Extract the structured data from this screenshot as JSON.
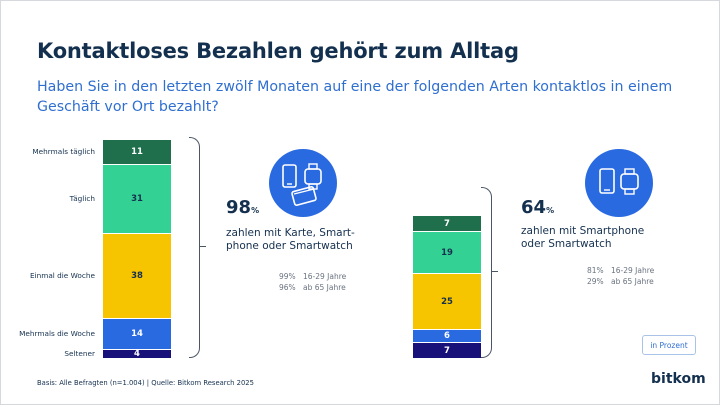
{
  "title": "Kontaktloses Bezahlen gehört zum Alltag",
  "question": "Haben Sie in den letzten zwölf Monaten auf eine der folgenden Arten kontaktlos in einem Geschäft vor Ort bezahlt?",
  "chart_data": [
    {
      "type": "bar",
      "stacked": true,
      "categories": [
        "Mehrmals täglich",
        "Täglich",
        "Einmal die Woche",
        "Mehrmals die Woche",
        "Seltener"
      ],
      "values": [
        11,
        31,
        38,
        14,
        4
      ],
      "colors": [
        "#1f6f4c",
        "#33d294",
        "#f7c400",
        "#2a6ae0",
        "#19117a"
      ],
      "label_colors": [
        "#ffffff",
        "#14304f",
        "#14304f",
        "#ffffff",
        "#ffffff"
      ],
      "total": {
        "value": "98",
        "unit": "%"
      },
      "description": "zahlen mit Karte, Smart-phone oder Smartwatch",
      "description_lines": [
        "zahlen mit Karte, Smart-",
        "phone oder Smartwatch"
      ],
      "breakdown": [
        {
          "pct": "99%",
          "label": "16-29 Jahre"
        },
        {
          "pct": "96%",
          "label": "ab 65 Jahre"
        }
      ],
      "icon": "card-phone-watch-icon"
    },
    {
      "type": "bar",
      "stacked": true,
      "categories": [
        "Mehrmals täglich",
        "Täglich",
        "Einmal die Woche",
        "Mehrmals die Woche",
        "Seltener"
      ],
      "values": [
        7,
        19,
        25,
        6,
        7
      ],
      "colors": [
        "#1f6f4c",
        "#33d294",
        "#f7c400",
        "#2a6ae0",
        "#19117a"
      ],
      "label_colors": [
        "#ffffff",
        "#14304f",
        "#14304f",
        "#ffffff",
        "#ffffff"
      ],
      "total": {
        "value": "64",
        "unit": "%"
      },
      "description_lines": [
        "zahlen mit Smartphone",
        "oder Smartwatch"
      ],
      "breakdown": [
        {
          "pct": "81%",
          "label": "16-29 Jahre"
        },
        {
          "pct": "29%",
          "label": "ab 65 Jahre"
        }
      ],
      "icon": "phone-watch-icon"
    }
  ],
  "unit_label": "in Prozent",
  "source": "Basis: Alle Befragten (n=1.004) | Quelle: Bitkom Research 2025",
  "logo": "bitkom"
}
